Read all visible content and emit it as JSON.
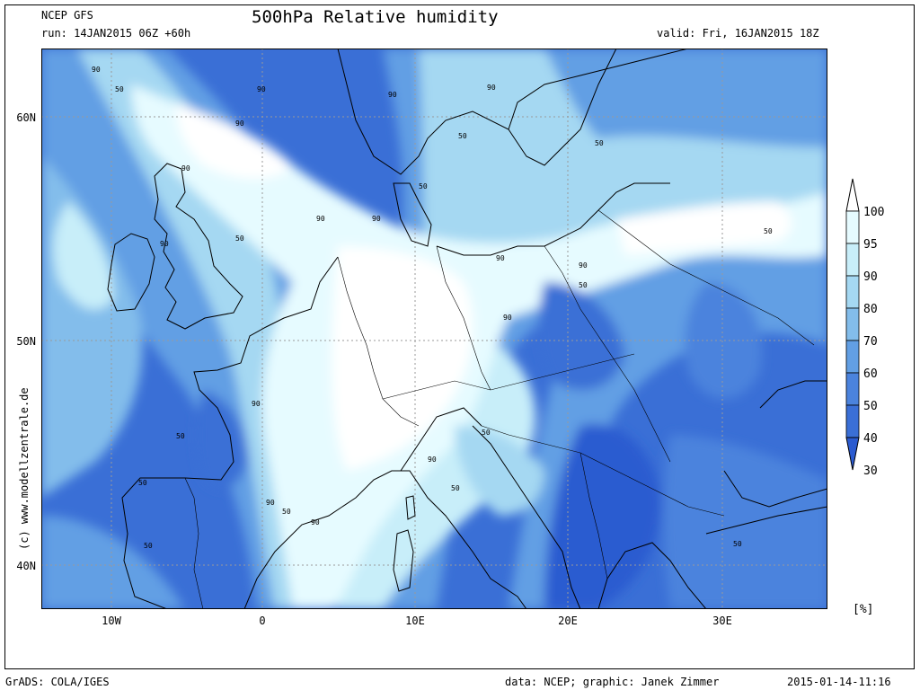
{
  "header": {
    "model": "NCEP GFS",
    "run": "run: 14JAN2015 06Z +60h",
    "title": "500hPa Relative humidity",
    "valid": "valid: Fri, 16JAN2015 18Z"
  },
  "axes": {
    "lat_labels": [
      "60N",
      "50N",
      "40N"
    ],
    "lon_labels": [
      "10W",
      "0",
      "10E",
      "20E",
      "30E"
    ]
  },
  "colorbar": {
    "levels": [
      "100",
      "95",
      "90",
      "80",
      "70",
      "60",
      "50",
      "40",
      "30"
    ],
    "unit": "[%]",
    "colors": [
      "#ffffff",
      "#e6fbff",
      "#c8eef9",
      "#a5d8f2",
      "#83bdeb",
      "#629fe4",
      "#4b83dd",
      "#3a6fd6",
      "#2b5bd0"
    ]
  },
  "contour_labels": [
    "90",
    "50"
  ],
  "credit_vertical": "(c) www.modellzentrale.de",
  "footer": {
    "left": "GrADS: COLA/IGES",
    "center": "data: NCEP; graphic: Janek Zimmer",
    "right": "2015-01-14-11:16"
  }
}
